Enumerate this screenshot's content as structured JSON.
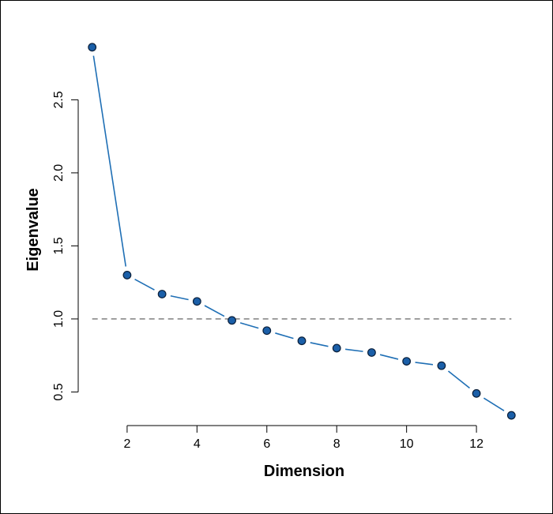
{
  "chart_data": {
    "type": "line",
    "title": "",
    "xlabel": "Dimension",
    "ylabel": "Eigenvalue",
    "xlim": [
      0.6,
      13.4
    ],
    "ylim": [
      0.27,
      2.94
    ],
    "x_ticks": [
      2,
      4,
      6,
      8,
      10,
      12
    ],
    "y_ticks": [
      0.5,
      1.0,
      1.5,
      2.0,
      2.5
    ],
    "x_tick_labels": [
      "2",
      "4",
      "6",
      "8",
      "10",
      "12"
    ],
    "y_tick_labels": [
      "0.5",
      "1.0",
      "1.5",
      "2.0",
      "2.5"
    ],
    "grid": false,
    "reference_line": {
      "y": 1.0,
      "style": "dashed"
    },
    "series": [
      {
        "x": [
          1,
          2,
          3,
          4,
          5,
          6,
          7,
          8,
          9,
          10,
          11,
          12,
          13
        ],
        "values": [
          2.86,
          1.3,
          1.17,
          1.12,
          0.99,
          0.92,
          0.85,
          0.8,
          0.77,
          0.71,
          0.68,
          0.49,
          0.34
        ]
      }
    ],
    "colors": {
      "line": "#1f6fb5",
      "marker_fill": "#1b5fa8",
      "marker_stroke": "#0a1f3a",
      "reference_line": "#555555",
      "axis": "#000000"
    }
  }
}
